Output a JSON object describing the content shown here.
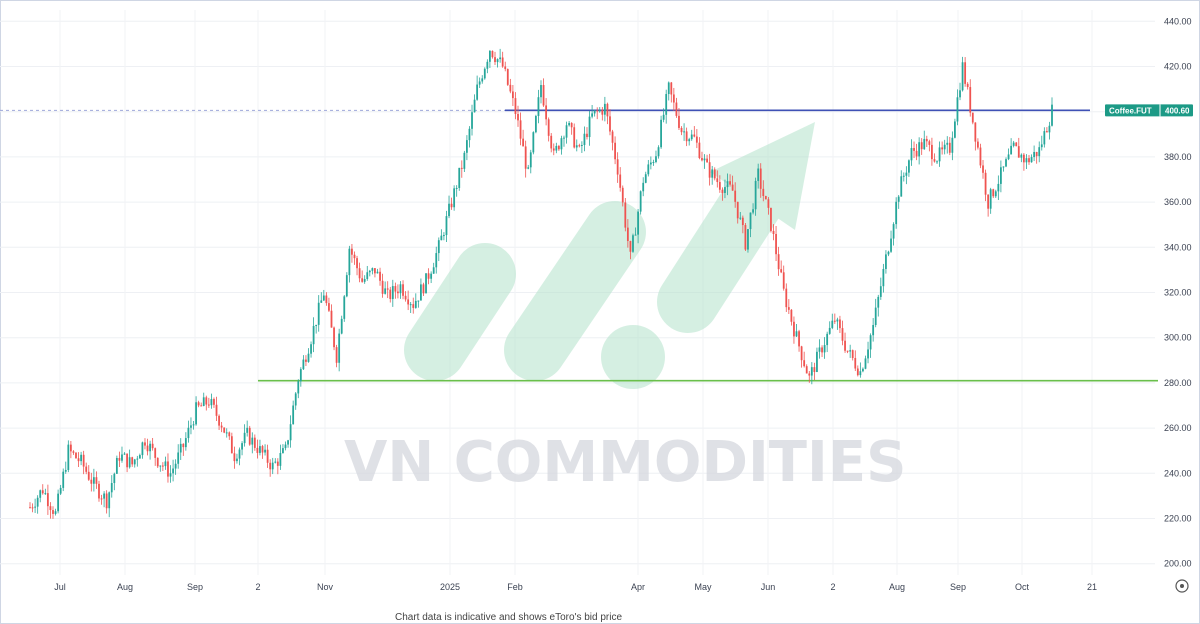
{
  "chart_data": {
    "type": "candlestick",
    "symbol": "Coffee.FUT",
    "last_price_label": "400.60",
    "y_axis": {
      "ylim": [
        195,
        445
      ],
      "ticks": [
        "200.00",
        "220.00",
        "240.00",
        "260.00",
        "280.00",
        "300.00",
        "320.00",
        "340.00",
        "360.00",
        "380.00",
        "400.00",
        "420.00",
        "440.00"
      ]
    },
    "x_axis": {
      "ticks": [
        "Jul",
        "Aug",
        "Sep",
        "2",
        "Nov",
        "2025",
        "Feb",
        "Apr",
        "May",
        "Jun",
        "2",
        "Aug",
        "Sep",
        "Oct",
        "21"
      ]
    },
    "series": [
      {
        "name": "Coffee.FUT",
        "points": [
          {
            "x": "Jul",
            "y": 225
          },
          {
            "x": "Jul",
            "y": 233
          },
          {
            "x": "Jul",
            "y": 222
          },
          {
            "x": "Jul",
            "y": 250
          },
          {
            "x": "Jul",
            "y": 245
          },
          {
            "x": "Aug",
            "y": 235
          },
          {
            "x": "Aug",
            "y": 228
          },
          {
            "x": "Aug",
            "y": 248
          },
          {
            "x": "Aug",
            "y": 244
          },
          {
            "x": "Aug",
            "y": 255
          },
          {
            "x": "Sep",
            "y": 246
          },
          {
            "x": "Sep",
            "y": 240
          },
          {
            "x": "Sep",
            "y": 252
          },
          {
            "x": "Sep",
            "y": 268
          },
          {
            "x": "Sep",
            "y": 272
          },
          {
            "x": "2",
            "y": 262
          },
          {
            "x": "2",
            "y": 248
          },
          {
            "x": "2",
            "y": 257
          },
          {
            "x": "2",
            "y": 250
          },
          {
            "x": "2",
            "y": 243
          },
          {
            "x": "Nov",
            "y": 250
          },
          {
            "x": "Nov",
            "y": 282
          },
          {
            "x": "Nov",
            "y": 300
          },
          {
            "x": "Nov",
            "y": 320
          },
          {
            "x": "Nov",
            "y": 292
          },
          {
            "x": "Nov",
            "y": 340
          },
          {
            "x": "Nov",
            "y": 325
          },
          {
            "x": "Nov",
            "y": 330
          },
          {
            "x": "Nov",
            "y": 318
          },
          {
            "x": "Nov",
            "y": 323
          },
          {
            "x": "2025",
            "y": 315
          },
          {
            "x": "2025",
            "y": 325
          },
          {
            "x": "2025",
            "y": 340
          },
          {
            "x": "2025",
            "y": 360
          },
          {
            "x": "2025",
            "y": 380
          },
          {
            "x": "Feb",
            "y": 410
          },
          {
            "x": "Feb",
            "y": 428
          },
          {
            "x": "Feb",
            "y": 420
          },
          {
            "x": "Feb",
            "y": 400
          },
          {
            "x": "Feb",
            "y": 372
          },
          {
            "x": "Feb",
            "y": 412
          },
          {
            "x": "Feb",
            "y": 380
          },
          {
            "x": "Feb",
            "y": 395
          },
          {
            "x": "Feb",
            "y": 382
          },
          {
            "x": "Feb",
            "y": 398
          },
          {
            "x": "Apr",
            "y": 402
          },
          {
            "x": "Apr",
            "y": 375
          },
          {
            "x": "Apr",
            "y": 335
          },
          {
            "x": "Apr",
            "y": 370
          },
          {
            "x": "Apr",
            "y": 382
          },
          {
            "x": "May",
            "y": 410
          },
          {
            "x": "May",
            "y": 392
          },
          {
            "x": "May",
            "y": 388
          },
          {
            "x": "May",
            "y": 375
          },
          {
            "x": "May",
            "y": 368
          },
          {
            "x": "Jun",
            "y": 365
          },
          {
            "x": "Jun",
            "y": 342
          },
          {
            "x": "Jun",
            "y": 372
          },
          {
            "x": "Jun",
            "y": 350
          },
          {
            "x": "Jun",
            "y": 320
          },
          {
            "x": "2",
            "y": 300
          },
          {
            "x": "2",
            "y": 282
          },
          {
            "x": "2",
            "y": 296
          },
          {
            "x": "2",
            "y": 308
          },
          {
            "x": "2",
            "y": 294
          },
          {
            "x": "2",
            "y": 285
          },
          {
            "x": "Aug",
            "y": 305
          },
          {
            "x": "Aug",
            "y": 335
          },
          {
            "x": "Aug",
            "y": 365
          },
          {
            "x": "Aug",
            "y": 382
          },
          {
            "x": "Sep",
            "y": 386
          },
          {
            "x": "Sep",
            "y": 380
          },
          {
            "x": "Sep",
            "y": 384
          },
          {
            "x": "Sep",
            "y": 420
          },
          {
            "x": "Sep",
            "y": 390
          },
          {
            "x": "Oct",
            "y": 360
          },
          {
            "x": "Oct",
            "y": 372
          },
          {
            "x": "Oct",
            "y": 384
          },
          {
            "x": "Oct",
            "y": 378
          },
          {
            "x": "Oct",
            "y": 383
          },
          {
            "x": "Oct",
            "y": 400.6
          }
        ]
      }
    ],
    "resistance_level": 400.6,
    "support_level": 281
  },
  "watermark": "VN COMMODITIES",
  "footnote": "Chart data is indicative and shows eToro's bid price",
  "colors": {
    "up": "#26a69a",
    "down": "#ef5350",
    "resistance": "#3f51b5",
    "support": "#6abf4b",
    "label_bg": "#1c9a86",
    "logo": "#b4e3cc"
  }
}
